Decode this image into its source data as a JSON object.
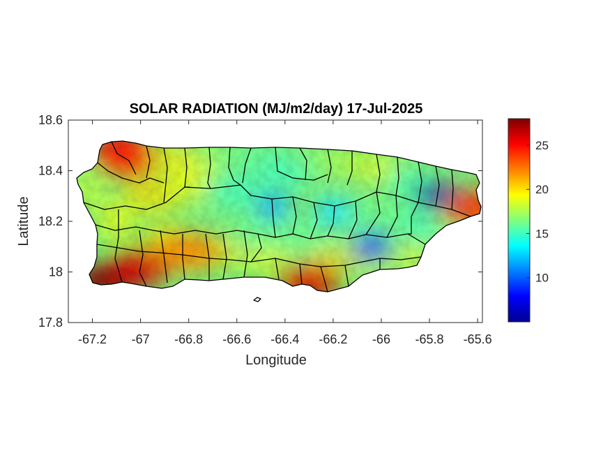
{
  "chart_data": {
    "type": "heatmap",
    "title": "SOLAR RADIATION (MJ/m2/day) 17-Jul-2025",
    "xlabel": "Longitude",
    "ylabel": "Latitude",
    "xlim": [
      -67.3,
      -65.58
    ],
    "ylim": [
      17.8,
      18.6
    ],
    "xticks": [
      "-67.2",
      "-67",
      "-66.8",
      "-66.6",
      "-66.4",
      "-66.2",
      "-66",
      "-65.8",
      "-65.6"
    ],
    "yticks": [
      "18.6",
      "18.4",
      "18.2",
      "18",
      "17.8"
    ],
    "colormap": "jet",
    "colorbar": {
      "min": 5,
      "max": 28,
      "ticks": [
        "25",
        "20",
        "15",
        "10"
      ]
    },
    "hotspots": [
      {
        "lon": -67.15,
        "lat": 17.96,
        "value": 28
      },
      {
        "lon": -67.0,
        "lat": 18.02,
        "value": 26
      },
      {
        "lon": -67.08,
        "lat": 18.48,
        "value": 25
      },
      {
        "lon": -66.3,
        "lat": 17.96,
        "value": 26
      },
      {
        "lon": -65.62,
        "lat": 18.25,
        "value": 24
      },
      {
        "lon": -66.8,
        "lat": 18.08,
        "value": 22
      }
    ],
    "coldspots": [
      {
        "lon": -65.78,
        "lat": 18.3,
        "value": 6
      },
      {
        "lon": -66.04,
        "lat": 18.1,
        "value": 9
      },
      {
        "lon": -66.45,
        "lat": 18.26,
        "value": 12
      },
      {
        "lon": -66.2,
        "lat": 18.24,
        "value": 13
      }
    ]
  }
}
